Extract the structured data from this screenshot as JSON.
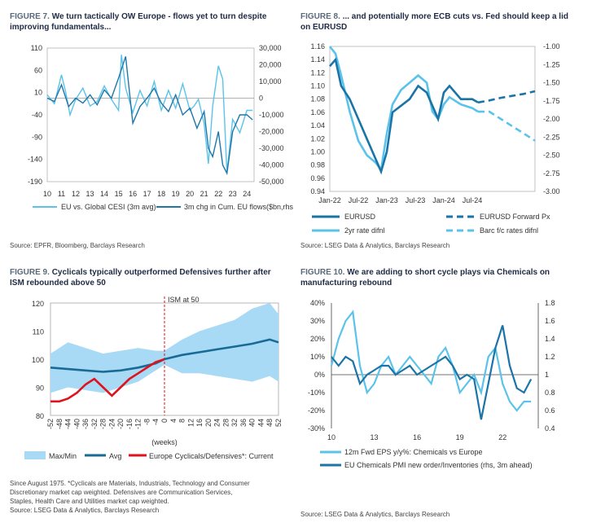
{
  "fig7": {
    "fig_label": "FIGURE 7.",
    "title": "We turn tactically OW Europe - flows yet to turn despite improving fundamentals...",
    "source": "Source: EPFR, Bloomberg, Barclays Research",
    "legend": [
      "EU vs. Global CESI (3m avg)",
      "3m chg in Cum. EU flows($bn,rhs)"
    ],
    "colors": {
      "cesi": "#5bc3ea",
      "flows": "#1f77a8"
    }
  },
  "fig8": {
    "fig_label": "FIGURE 8.",
    "title": "... and potentially more ECB cuts vs. Fed should keep a lid on EURUSD",
    "source": "Source: LSEG Data & Analytics, Barclays Research",
    "legend": [
      "EURUSD",
      "EURUSD Forward Px",
      "2yr rate difnl",
      "Barc f/c rates difnl"
    ],
    "colors": {
      "dark": "#1a74a8",
      "light": "#5bc3ea"
    }
  },
  "fig9": {
    "fig_label": "FIGURE 9.",
    "title": "Cyclicals typically outperformed Defensives further after ISM rebounded above 50",
    "annotation": "ISM at 50",
    "xunit": "(weeks)",
    "legend": [
      "Max/Min",
      "Avg",
      "Europe Cyclicals/Defensives*: Current"
    ],
    "notes": [
      "Since August 1975. *Cyclicals are Materials, Industrials, Technology and Consumer",
      "Discretionary market cap weighted. Defensives are Communication Services,",
      "Staples, Health Care and Utilities market cap weighted."
    ],
    "source": "Source: LSEG Data & Analytics, Barclays Research",
    "colors": {
      "band": "#a8daf5",
      "avg": "#1a6a96",
      "current": "#e0121b"
    }
  },
  "fig10": {
    "fig_label": "FIGURE 10.",
    "title": "We are adding to short cycle plays via Chemicals on manufacturing rebound",
    "legend": [
      "12m Fwd EPS y/y%: Chemicals vs Europe",
      "EU Chemicals PMI new order/Inventories (rhs, 3m ahead)"
    ],
    "source": "Source: LSEG Data & Analytics, Barclays Research",
    "colors": {
      "eps": "#5bc3ea",
      "pmi": "#1a74a8"
    }
  },
  "chart_data": [
    {
      "id": "fig7",
      "type": "line",
      "x_ticks": [
        "10",
        "11",
        "12",
        "13",
        "14",
        "15",
        "16",
        "17",
        "18",
        "19",
        "20",
        "21",
        "22",
        "23",
        "24"
      ],
      "y_ticks": [
        110,
        60,
        10,
        -40,
        -90,
        -140,
        -190
      ],
      "y2_ticks": [
        "30,000",
        "20,000",
        "10,000",
        "0",
        "-10,000",
        "-20,000",
        "-30,000",
        "-40,000",
        "-50,000"
      ],
      "ylim": [
        -190,
        110
      ],
      "y2lim": [
        -50000,
        30000
      ],
      "series": [
        {
          "name": "EU vs. Global CESI (3m avg)",
          "axis": "left",
          "x": [
            10,
            10.5,
            11,
            11.3,
            11.6,
            12,
            12.5,
            13,
            13.5,
            14,
            14.5,
            15,
            15.2,
            15.5,
            16,
            16.5,
            17,
            17.5,
            18,
            18.5,
            19,
            19.5,
            20,
            20.3,
            20.6,
            21,
            21.3,
            21.6,
            22,
            22.3,
            22.6,
            23,
            23.5,
            24,
            24.4
          ],
          "values": [
            5,
            -15,
            50,
            10,
            -40,
            -5,
            20,
            -20,
            -10,
            25,
            -5,
            -30,
            95,
            20,
            -35,
            15,
            -20,
            35,
            -30,
            15,
            -25,
            30,
            -30,
            -20,
            -5,
            -60,
            -150,
            -20,
            70,
            40,
            -170,
            -50,
            -80,
            -30,
            -30
          ]
        },
        {
          "name": "3m chg in Cum. EU flows($bn,rhs)",
          "axis": "right",
          "x": [
            10,
            10.5,
            11,
            11.5,
            12,
            12.5,
            13,
            13.5,
            14,
            14.5,
            15,
            15.5,
            16,
            16.5,
            17,
            17.5,
            18,
            18.5,
            19,
            19.5,
            20,
            20.5,
            21,
            21.3,
            21.6,
            22,
            22.3,
            22.6,
            23,
            23.5,
            24,
            24.4
          ],
          "values": [
            0,
            -2000,
            8000,
            -5000,
            0,
            -3000,
            2000,
            -4000,
            5000,
            0,
            12000,
            25000,
            -15000,
            -5000,
            0,
            6000,
            -3000,
            -8000,
            2000,
            -10000,
            -6000,
            -18000,
            -8000,
            -30000,
            -35000,
            -20000,
            -40000,
            -45000,
            -20000,
            -10000,
            -10000,
            -13000
          ]
        }
      ]
    },
    {
      "id": "fig8",
      "type": "line",
      "x_ticks": [
        "Jan-22",
        "Jul-22",
        "Jan-23",
        "Jul-23",
        "Jan-24",
        "Jul-24"
      ],
      "y_ticks": [
        "1.16",
        "1.14",
        "1.12",
        "1.10",
        "1.08",
        "1.06",
        "1.04",
        "1.02",
        "1.00",
        "0.98",
        "0.96",
        "0.94"
      ],
      "y2_ticks": [
        "-1.00",
        "-1.25",
        "-1.50",
        "-1.75",
        "-2.00",
        "-2.25",
        "-2.50",
        "-2.75",
        "-3.00"
      ],
      "ylim": [
        0.94,
        1.16
      ],
      "y2lim": [
        -3.0,
        -1.0
      ],
      "series": [
        {
          "name": "EURUSD",
          "axis": "left",
          "x": [
            0,
            0.1,
            0.2,
            0.35,
            0.5,
            0.65,
            0.8,
            0.9,
            1.0,
            1.1,
            1.25,
            1.4,
            1.55,
            1.7,
            1.8,
            1.9,
            2.0,
            2.1,
            2.3,
            2.5,
            2.6
          ],
          "values": [
            1.13,
            1.14,
            1.1,
            1.08,
            1.05,
            1.02,
            0.99,
            0.97,
            1.0,
            1.06,
            1.07,
            1.08,
            1.1,
            1.09,
            1.07,
            1.05,
            1.09,
            1.1,
            1.08,
            1.08,
            1.075
          ]
        },
        {
          "name": "EURUSD Forward Px",
          "axis": "left",
          "x": [
            2.6,
            2.8,
            3.0,
            3.2,
            3.4,
            3.6
          ],
          "values": [
            1.075,
            1.078,
            1.082,
            1.085,
            1.088,
            1.092
          ]
        },
        {
          "name": "2yr rate difnl",
          "axis": "right",
          "x": [
            0,
            0.1,
            0.2,
            0.35,
            0.5,
            0.65,
            0.8,
            0.9,
            1.0,
            1.1,
            1.25,
            1.4,
            1.55,
            1.7,
            1.8,
            1.9,
            2.0,
            2.1,
            2.3,
            2.5,
            2.6
          ],
          "values": [
            -1.0,
            -1.1,
            -1.4,
            -1.9,
            -2.3,
            -2.5,
            -2.6,
            -2.7,
            -2.2,
            -1.8,
            -1.6,
            -1.5,
            -1.4,
            -1.5,
            -1.9,
            -2.0,
            -1.8,
            -1.7,
            -1.8,
            -1.85,
            -1.9
          ]
        },
        {
          "name": "Barc f/c rates difnl",
          "axis": "right",
          "x": [
            2.6,
            2.8,
            3.0,
            3.2,
            3.4,
            3.6
          ],
          "values": [
            -1.9,
            -1.9,
            -2.0,
            -2.1,
            -2.2,
            -2.3
          ]
        }
      ]
    },
    {
      "id": "fig9",
      "type": "area",
      "x_ticks": [
        "-52",
        "-48",
        "-44",
        "-40",
        "-36",
        "-32",
        "-28",
        "-24",
        "-20",
        "-16",
        "-12",
        "-8",
        "-4",
        "0",
        "4",
        "8",
        "12",
        "16",
        "20",
        "24",
        "28",
        "32",
        "36",
        "40",
        "44",
        "48",
        "52"
      ],
      "y_ticks": [
        120,
        110,
        100,
        90,
        80
      ],
      "ylim": [
        80,
        120
      ],
      "series": [
        {
          "name": "Max/Min",
          "x": [
            -52,
            -44,
            -36,
            -28,
            -20,
            -12,
            -4,
            0,
            8,
            16,
            24,
            32,
            40,
            48,
            52
          ],
          "upper": [
            102,
            106,
            104,
            102,
            103,
            104,
            103,
            103,
            107,
            110,
            112,
            114,
            118,
            120,
            116
          ],
          "lower": [
            88,
            90,
            89,
            88,
            90,
            92,
            96,
            98,
            95,
            95,
            94,
            93,
            92,
            94,
            92
          ]
        },
        {
          "name": "Avg",
          "x": [
            -52,
            -44,
            -36,
            -28,
            -20,
            -12,
            -4,
            0,
            8,
            16,
            24,
            32,
            40,
            48,
            52
          ],
          "values": [
            97,
            96.5,
            96,
            95.5,
            96,
            97,
            98.5,
            100,
            101.5,
            102.5,
            103.5,
            104.5,
            105.5,
            107,
            106
          ]
        },
        {
          "name": "Europe Cyclicals/Defensives*: Current",
          "x": [
            -52,
            -48,
            -44,
            -40,
            -36,
            -32,
            -28,
            -24,
            -20,
            -16,
            -12,
            -8,
            -4,
            0
          ],
          "values": [
            85,
            85,
            86,
            88,
            91,
            93,
            90,
            87,
            90,
            93,
            95,
            97,
            99,
            100
          ]
        }
      ]
    },
    {
      "id": "fig10",
      "type": "line",
      "x_ticks": [
        "10",
        "13",
        "16",
        "19",
        "22"
      ],
      "y_ticks": [
        "40%",
        "30%",
        "20%",
        "10%",
        "0%",
        "-10%",
        "-20%",
        "-30%"
      ],
      "y2_ticks": [
        "1.8",
        "1.6",
        "1.4",
        "1.2",
        "1",
        "0.8",
        "0.6",
        "0.4"
      ],
      "ylim": [
        -30,
        40
      ],
      "y2lim": [
        0.4,
        1.8
      ],
      "series": [
        {
          "name": "12m Fwd EPS y/y%: Chemicals vs Europe",
          "axis": "left",
          "x": [
            10,
            10.5,
            11,
            11.5,
            12,
            12.5,
            13,
            13.5,
            14,
            14.5,
            15,
            15.5,
            16,
            16.5,
            17,
            17.5,
            18,
            18.5,
            19,
            19.5,
            20,
            20.5,
            21,
            21.5,
            22,
            22.5,
            23,
            23.5,
            24
          ],
          "values": [
            5,
            20,
            30,
            35,
            5,
            -10,
            -5,
            5,
            10,
            0,
            5,
            10,
            5,
            0,
            -5,
            10,
            15,
            5,
            -10,
            -5,
            0,
            -10,
            10,
            15,
            -5,
            -15,
            -20,
            -15,
            -15
          ]
        },
        {
          "name": "EU Chemicals PMI new order/Inventories (rhs, 3m ahead)",
          "axis": "right",
          "x": [
            10,
            10.5,
            11,
            11.5,
            12,
            12.5,
            13,
            13.5,
            14,
            14.5,
            15,
            15.5,
            16,
            16.5,
            17,
            17.5,
            18,
            18.5,
            19,
            19.5,
            20,
            20.5,
            21,
            21.5,
            22,
            22.5,
            23,
            23.5,
            24
          ],
          "values": [
            1.2,
            1.1,
            1.2,
            1.15,
            0.9,
            1.0,
            1.05,
            1.1,
            1.1,
            1.0,
            1.05,
            1.1,
            1.0,
            1.05,
            1.1,
            1.15,
            1.2,
            1.1,
            0.95,
            1.0,
            0.95,
            0.5,
            0.9,
            1.3,
            1.55,
            1.1,
            0.85,
            0.8,
            0.95
          ]
        }
      ]
    }
  ]
}
